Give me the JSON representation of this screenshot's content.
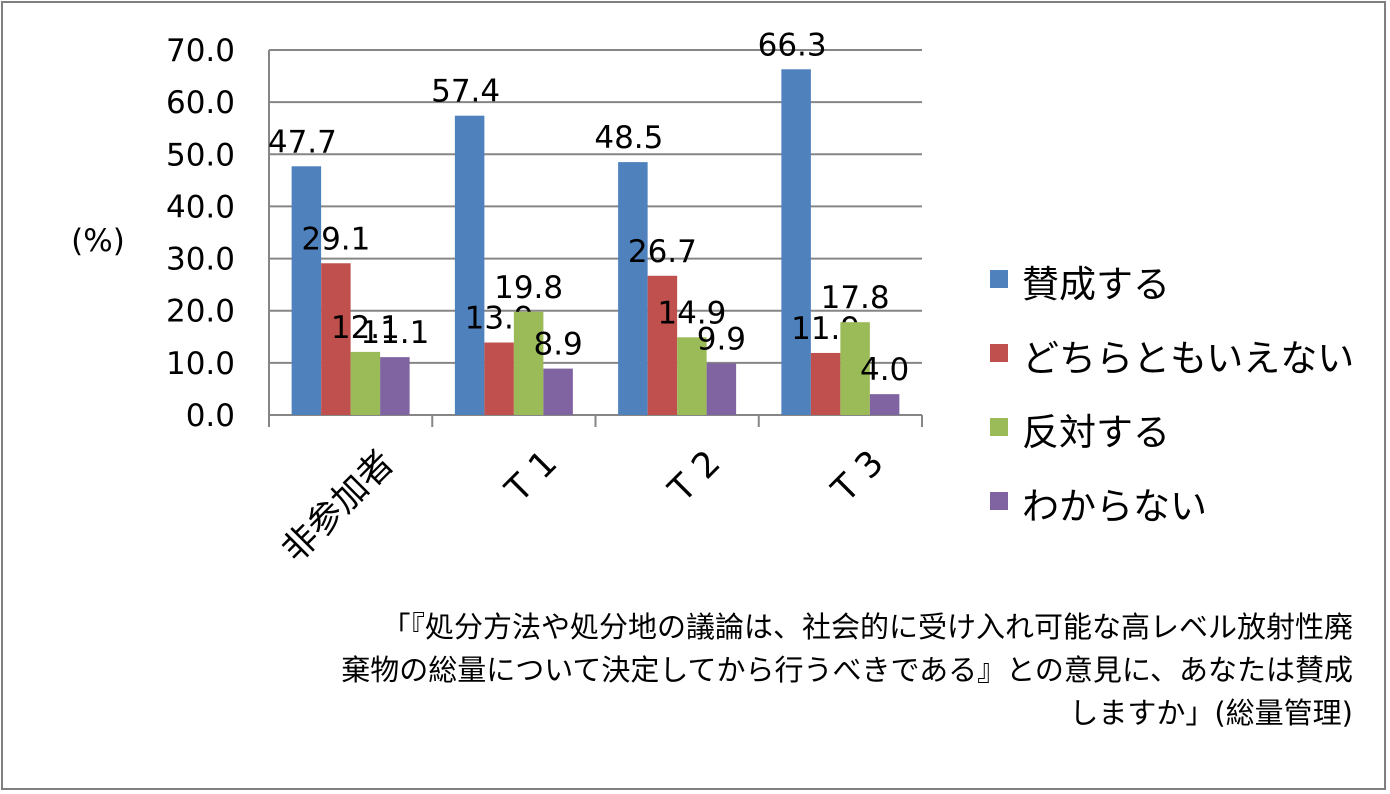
{
  "chart_data": {
    "type": "bar",
    "categories": [
      "非参加者",
      "T 1",
      "T 2",
      "T 3"
    ],
    "series": [
      {
        "name": "賛成する",
        "color": "#4f81bd",
        "values": [
          47.7,
          57.4,
          48.5,
          66.3
        ]
      },
      {
        "name": "どちらともいえない",
        "color": "#c0504d",
        "values": [
          29.1,
          13.9,
          26.7,
          11.9
        ]
      },
      {
        "name": "反対する",
        "color": "#9bbb59",
        "values": [
          12.1,
          19.8,
          14.9,
          17.8
        ]
      },
      {
        "name": "わからない",
        "color": "#8064a2",
        "values": [
          11.1,
          8.9,
          9.9,
          4.0
        ]
      }
    ],
    "ylabel": "(%)",
    "ylim": [
      0,
      70
    ],
    "yticks": [
      "0.0",
      "10.0",
      "20.0",
      "30.0",
      "40.0",
      "50.0",
      "60.0",
      "70.0"
    ],
    "grid": true,
    "legend_position": "right",
    "caption_lines": [
      "「『処分方法や処分地の議論は、社会的に受け入れ可能な高レベル放射性廃",
      "棄物の総量について決定してから行うべきである』との意見に、あなたは賛成",
      "しますか」(総量管理)"
    ]
  }
}
